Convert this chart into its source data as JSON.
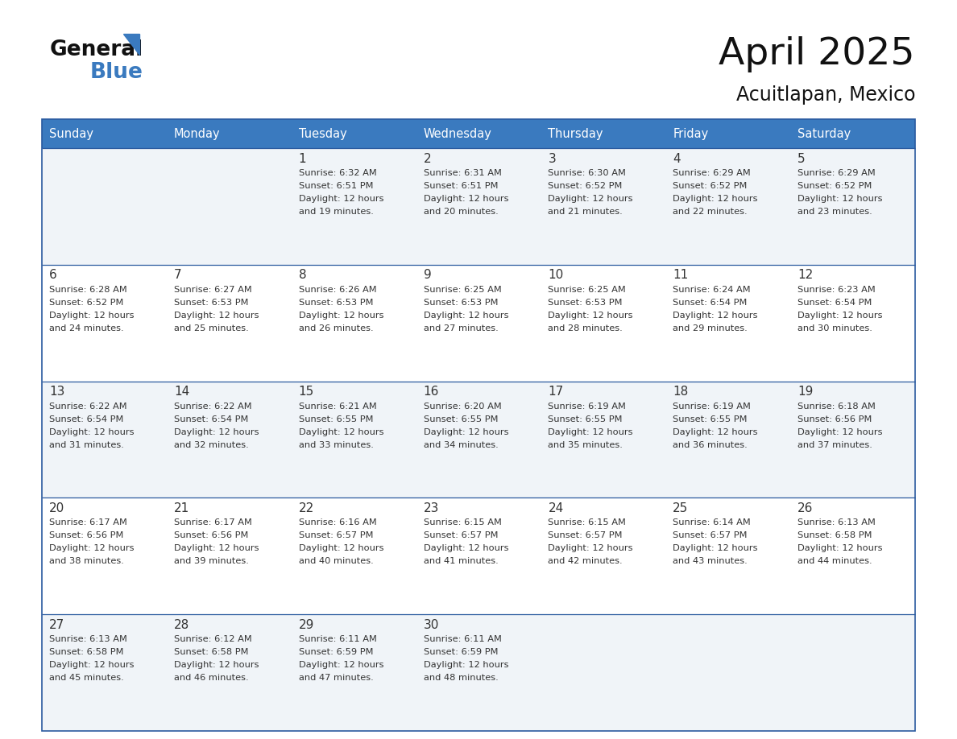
{
  "title": "April 2025",
  "subtitle": "Acuitlapan, Mexico",
  "days_of_week": [
    "Sunday",
    "Monday",
    "Tuesday",
    "Wednesday",
    "Thursday",
    "Friday",
    "Saturday"
  ],
  "header_bg": "#3a7abf",
  "header_text": "#ffffff",
  "row_bg_odd": "#f0f4f8",
  "row_bg_even": "#ffffff",
  "cell_text_color": "#333333",
  "border_color": "#2a5a9f",
  "fig_width": 11.88,
  "fig_height": 9.18,
  "dpi": 100,
  "calendar": [
    [
      {
        "day": "",
        "sunrise": "",
        "sunset": "",
        "daylight": ""
      },
      {
        "day": "",
        "sunrise": "",
        "sunset": "",
        "daylight": ""
      },
      {
        "day": "1",
        "sunrise": "6:32 AM",
        "sunset": "6:51 PM",
        "daylight": "12 hours and 19 minutes."
      },
      {
        "day": "2",
        "sunrise": "6:31 AM",
        "sunset": "6:51 PM",
        "daylight": "12 hours and 20 minutes."
      },
      {
        "day": "3",
        "sunrise": "6:30 AM",
        "sunset": "6:52 PM",
        "daylight": "12 hours and 21 minutes."
      },
      {
        "day": "4",
        "sunrise": "6:29 AM",
        "sunset": "6:52 PM",
        "daylight": "12 hours and 22 minutes."
      },
      {
        "day": "5",
        "sunrise": "6:29 AM",
        "sunset": "6:52 PM",
        "daylight": "12 hours and 23 minutes."
      }
    ],
    [
      {
        "day": "6",
        "sunrise": "6:28 AM",
        "sunset": "6:52 PM",
        "daylight": "12 hours and 24 minutes."
      },
      {
        "day": "7",
        "sunrise": "6:27 AM",
        "sunset": "6:53 PM",
        "daylight": "12 hours and 25 minutes."
      },
      {
        "day": "8",
        "sunrise": "6:26 AM",
        "sunset": "6:53 PM",
        "daylight": "12 hours and 26 minutes."
      },
      {
        "day": "9",
        "sunrise": "6:25 AM",
        "sunset": "6:53 PM",
        "daylight": "12 hours and 27 minutes."
      },
      {
        "day": "10",
        "sunrise": "6:25 AM",
        "sunset": "6:53 PM",
        "daylight": "12 hours and 28 minutes."
      },
      {
        "day": "11",
        "sunrise": "6:24 AM",
        "sunset": "6:54 PM",
        "daylight": "12 hours and 29 minutes."
      },
      {
        "day": "12",
        "sunrise": "6:23 AM",
        "sunset": "6:54 PM",
        "daylight": "12 hours and 30 minutes."
      }
    ],
    [
      {
        "day": "13",
        "sunrise": "6:22 AM",
        "sunset": "6:54 PM",
        "daylight": "12 hours and 31 minutes."
      },
      {
        "day": "14",
        "sunrise": "6:22 AM",
        "sunset": "6:54 PM",
        "daylight": "12 hours and 32 minutes."
      },
      {
        "day": "15",
        "sunrise": "6:21 AM",
        "sunset": "6:55 PM",
        "daylight": "12 hours and 33 minutes."
      },
      {
        "day": "16",
        "sunrise": "6:20 AM",
        "sunset": "6:55 PM",
        "daylight": "12 hours and 34 minutes."
      },
      {
        "day": "17",
        "sunrise": "6:19 AM",
        "sunset": "6:55 PM",
        "daylight": "12 hours and 35 minutes."
      },
      {
        "day": "18",
        "sunrise": "6:19 AM",
        "sunset": "6:55 PM",
        "daylight": "12 hours and 36 minutes."
      },
      {
        "day": "19",
        "sunrise": "6:18 AM",
        "sunset": "6:56 PM",
        "daylight": "12 hours and 37 minutes."
      }
    ],
    [
      {
        "day": "20",
        "sunrise": "6:17 AM",
        "sunset": "6:56 PM",
        "daylight": "12 hours and 38 minutes."
      },
      {
        "day": "21",
        "sunrise": "6:17 AM",
        "sunset": "6:56 PM",
        "daylight": "12 hours and 39 minutes."
      },
      {
        "day": "22",
        "sunrise": "6:16 AM",
        "sunset": "6:57 PM",
        "daylight": "12 hours and 40 minutes."
      },
      {
        "day": "23",
        "sunrise": "6:15 AM",
        "sunset": "6:57 PM",
        "daylight": "12 hours and 41 minutes."
      },
      {
        "day": "24",
        "sunrise": "6:15 AM",
        "sunset": "6:57 PM",
        "daylight": "12 hours and 42 minutes."
      },
      {
        "day": "25",
        "sunrise": "6:14 AM",
        "sunset": "6:57 PM",
        "daylight": "12 hours and 43 minutes."
      },
      {
        "day": "26",
        "sunrise": "6:13 AM",
        "sunset": "6:58 PM",
        "daylight": "12 hours and 44 minutes."
      }
    ],
    [
      {
        "day": "27",
        "sunrise": "6:13 AM",
        "sunset": "6:58 PM",
        "daylight": "12 hours and 45 minutes."
      },
      {
        "day": "28",
        "sunrise": "6:12 AM",
        "sunset": "6:58 PM",
        "daylight": "12 hours and 46 minutes."
      },
      {
        "day": "29",
        "sunrise": "6:11 AM",
        "sunset": "6:59 PM",
        "daylight": "12 hours and 47 minutes."
      },
      {
        "day": "30",
        "sunrise": "6:11 AM",
        "sunset": "6:59 PM",
        "daylight": "12 hours and 48 minutes."
      },
      {
        "day": "",
        "sunrise": "",
        "sunset": "",
        "daylight": ""
      },
      {
        "day": "",
        "sunrise": "",
        "sunset": "",
        "daylight": ""
      },
      {
        "day": "",
        "sunrise": "",
        "sunset": "",
        "daylight": ""
      }
    ]
  ]
}
